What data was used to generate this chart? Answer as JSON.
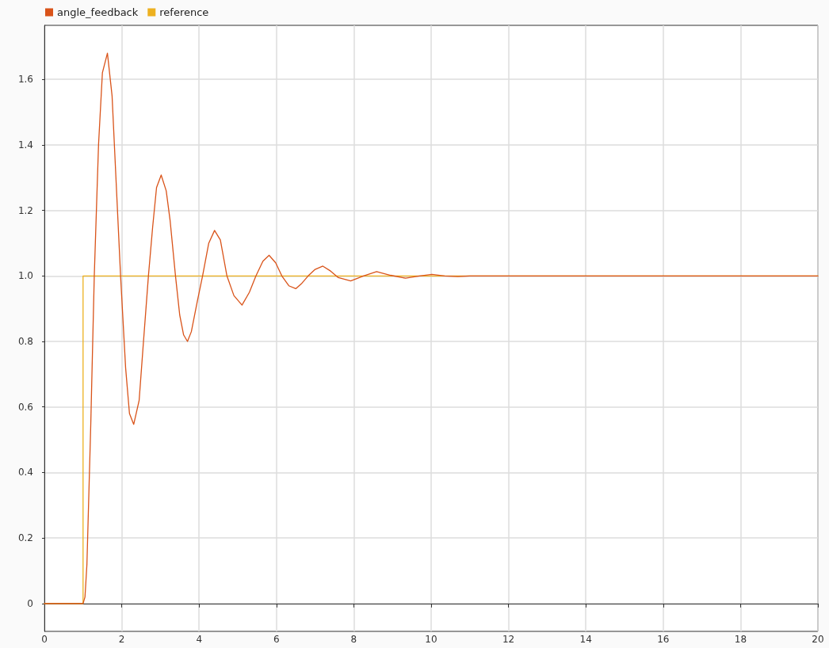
{
  "chart_data": {
    "type": "line",
    "xlim": [
      0,
      20
    ],
    "xticks": [
      0,
      2,
      4,
      6,
      8,
      10,
      12,
      14,
      16,
      18,
      20
    ],
    "ylim": [
      -0.085,
      1.765
    ],
    "yticks": [
      0,
      0.2,
      0.4,
      0.6,
      0.8,
      {
        "value": 1,
        "label": "1.0"
      },
      1.2,
      1.4,
      1.6
    ],
    "grid": true,
    "legend": "top left",
    "marker": "none",
    "line_style": "solid",
    "series": [
      {
        "name": "angle_feedback",
        "color": "#d95319",
        "x": [
          0,
          1.0,
          1.05,
          1.1,
          1.2,
          1.29,
          1.4,
          1.5,
          1.63,
          1.75,
          1.85,
          1.97,
          2.1,
          2.2,
          2.31,
          2.45,
          2.55,
          2.69,
          2.8,
          2.9,
          3.02,
          3.15,
          3.25,
          3.39,
          3.5,
          3.6,
          3.7,
          3.8,
          3.95,
          4.09,
          4.25,
          4.4,
          4.55,
          4.72,
          4.9,
          5.11,
          5.3,
          5.47,
          5.65,
          5.81,
          5.98,
          6.14,
          6.32,
          6.5,
          6.66,
          6.82,
          7.0,
          7.2,
          7.4,
          7.6,
          7.92,
          8.25,
          8.59,
          8.95,
          9.34,
          9.7,
          10.02,
          10.35,
          10.69,
          11.0,
          20
        ],
        "values": [
          0,
          0,
          0.02,
          0.12,
          0.55,
          1.0,
          1.4,
          1.62,
          1.68,
          1.55,
          1.3,
          1.0,
          0.72,
          0.58,
          0.547,
          0.62,
          0.78,
          1.0,
          1.15,
          1.27,
          1.308,
          1.26,
          1.17,
          1.0,
          0.88,
          0.82,
          0.8,
          0.83,
          0.92,
          1.0,
          1.1,
          1.139,
          1.11,
          1.0,
          0.94,
          0.911,
          0.95,
          1.0,
          1.045,
          1.063,
          1.04,
          1.0,
          0.97,
          0.961,
          0.978,
          1.0,
          1.02,
          1.03,
          1.015,
          0.995,
          0.985,
          1.0,
          1.013,
          1.002,
          0.993,
          1.0,
          1.005,
          1.0,
          0.998,
          1.0,
          1.0
        ]
      },
      {
        "name": "reference",
        "color": "#edb120",
        "x": [
          0,
          1,
          1,
          20
        ],
        "values": [
          0,
          0,
          1,
          1
        ]
      }
    ]
  }
}
